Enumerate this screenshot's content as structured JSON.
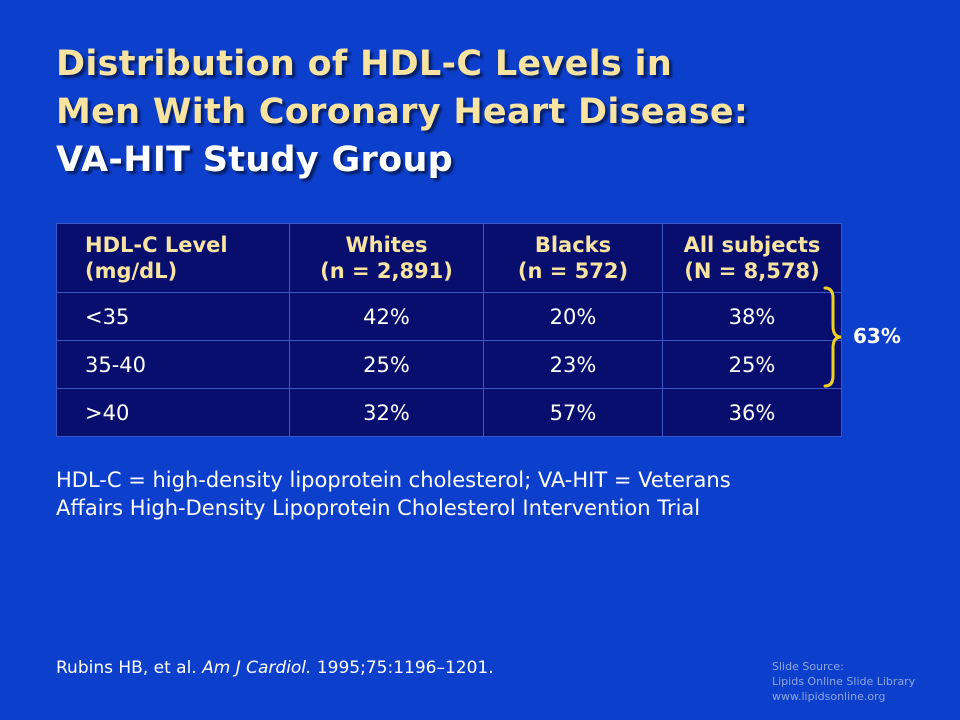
{
  "slide": {
    "title_line1": "Distribution of HDL-C Levels in",
    "title_line2": "Men With Coronary Heart Disease:",
    "title_line3": "VA-HIT Study Group"
  },
  "table": {
    "headers": [
      {
        "line1": "HDL-C Level",
        "line2": "(mg/dL)"
      },
      {
        "line1": "Whites",
        "line2": "(n = 2,891)"
      },
      {
        "line1": "Blacks",
        "line2": "(n = 572)"
      },
      {
        "line1": "All subjects",
        "line2": "(N = 8,578)"
      }
    ],
    "rows": [
      [
        "<35",
        "42%",
        "20%",
        "38%"
      ],
      [
        "35-40",
        "25%",
        "23%",
        "25%"
      ],
      [
        ">40",
        "32%",
        "57%",
        "36%"
      ]
    ]
  },
  "brace": {
    "label": "63%",
    "color": "#f0d020"
  },
  "footnote": {
    "line1": "HDL-C = high-density lipoprotein cholesterol; VA-HIT = Veterans",
    "line2": "Affairs High-Density Lipoprotein Cholesterol Intervention Trial"
  },
  "citation": {
    "authors": "Rubins HB, et al.",
    "journal": "Am J Cardiol.",
    "details": "1995;75:1196–1201."
  },
  "source": {
    "line1": "Slide Source:",
    "line2": "Lipids Online Slide Library",
    "line3": "www.lipidsonline.org"
  },
  "colors": {
    "background": "#0c3fcc",
    "title_accent": "#f8e4a0",
    "table_bg": "#080e6e"
  }
}
